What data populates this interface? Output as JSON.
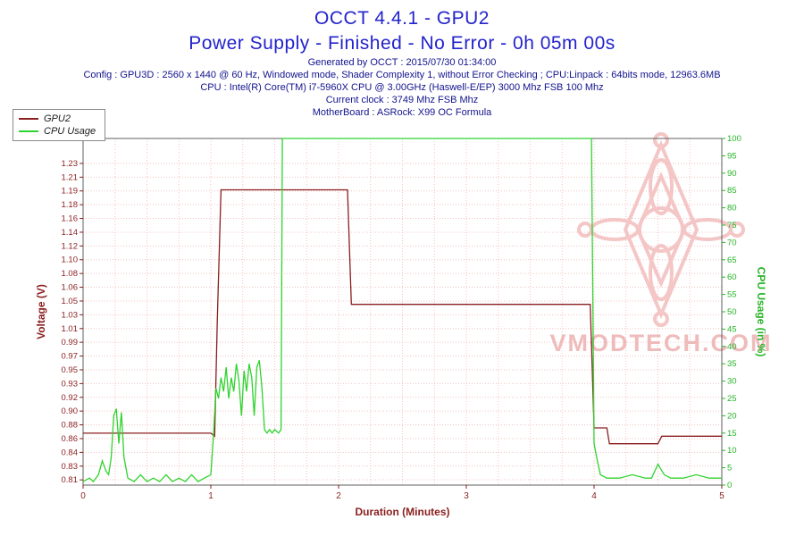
{
  "header": {
    "title_color": "#2323cc",
    "meta_color": "#12128e",
    "meta_lines": [
      "Generated by OCCT : 2015/07/30 01:34:00",
      "Config : GPU3D : 2560 x 1440 @ 60 Hz, Windowed mode, Shader Complexity 1, without Error Checking ; CPU:Linpack : 64bits mode, 12963.6MB",
      "CPU : Intel(R) Core(TM) i7-5960X CPU @ 3.00GHz (Haswell-E/EP) 3000 Mhz FSB 100 Mhz",
      "Current clock : 3749 Mhz FSB  Mhz",
      "MotherBoard : ASRock: X99 OC Formula"
    ]
  },
  "watermark": {
    "text": "VMODTECH.COM",
    "color": "#eeb4b4",
    "shape_color": "#f3c0c0"
  },
  "chart_data": {
    "type": "line",
    "title": "OCCT 4.4.1 - GPU2",
    "subtitle": "Power Supply - Finished - No Error - 0h 05m 00s",
    "xlabel": "Duration (Minutes)",
    "xlim": [
      0,
      5
    ],
    "x_ticks": [
      0,
      1,
      2,
      3,
      4,
      5
    ],
    "grid": true,
    "grid_color": "#f5c1c1",
    "legend_position": "top-left",
    "left_axis": {
      "label": "Voltage (V)",
      "color": "#8b1e1e",
      "range_top": 1.23,
      "range_bottom": 0.81,
      "tick_labels": [
        "1.23",
        "1.21",
        "1.19",
        "1.18",
        "1.16",
        "1.14",
        "1.12",
        "1.10",
        "1.08",
        "1.06",
        "1.05",
        "1.03",
        "1.01",
        "0.99",
        "0.97",
        "0.95",
        "0.93",
        "0.92",
        "0.90",
        "0.88",
        "0.86",
        "0.84",
        "0.83",
        "0.81"
      ]
    },
    "right_axis": {
      "label": "CPU Usage (in %)",
      "color": "#28b428",
      "lim": [
        0,
        100
      ],
      "ticks": [
        0,
        5,
        10,
        15,
        20,
        25,
        30,
        35,
        40,
        45,
        50,
        55,
        60,
        65,
        70,
        75,
        80,
        85,
        90,
        95,
        100
      ]
    },
    "series": [
      {
        "name": "GPU2",
        "axis": "left",
        "color": "#8b1e1e",
        "points": [
          [
            0,
            0.872
          ],
          [
            0.3,
            0.872
          ],
          [
            0.6,
            0.872
          ],
          [
            0.9,
            0.872
          ],
          [
            1.0,
            0.872
          ],
          [
            1.03,
            0.868
          ],
          [
            1.05,
            1.02
          ],
          [
            1.08,
            1.195
          ],
          [
            1.4,
            1.195
          ],
          [
            1.8,
            1.195
          ],
          [
            2.07,
            1.195
          ],
          [
            2.1,
            1.043
          ],
          [
            2.5,
            1.043
          ],
          [
            3.0,
            1.043
          ],
          [
            3.5,
            1.043
          ],
          [
            3.97,
            1.043
          ],
          [
            4.0,
            0.879
          ],
          [
            4.1,
            0.879
          ],
          [
            4.12,
            0.858
          ],
          [
            4.3,
            0.858
          ],
          [
            4.5,
            0.858
          ],
          [
            4.53,
            0.868
          ],
          [
            4.8,
            0.868
          ],
          [
            5,
            0.868
          ]
        ]
      },
      {
        "name": "CPU Usage",
        "axis": "right",
        "color": "#2fd32f",
        "points": [
          [
            0,
            1
          ],
          [
            0.05,
            2
          ],
          [
            0.08,
            1
          ],
          [
            0.12,
            3
          ],
          [
            0.15,
            7
          ],
          [
            0.18,
            4
          ],
          [
            0.2,
            3
          ],
          [
            0.22,
            8
          ],
          [
            0.24,
            20
          ],
          [
            0.26,
            22
          ],
          [
            0.28,
            12
          ],
          [
            0.3,
            21
          ],
          [
            0.32,
            8
          ],
          [
            0.35,
            2
          ],
          [
            0.4,
            1
          ],
          [
            0.45,
            3
          ],
          [
            0.5,
            1
          ],
          [
            0.55,
            2
          ],
          [
            0.6,
            1
          ],
          [
            0.65,
            3
          ],
          [
            0.7,
            1
          ],
          [
            0.75,
            2
          ],
          [
            0.8,
            1
          ],
          [
            0.85,
            3
          ],
          [
            0.9,
            1
          ],
          [
            0.95,
            2
          ],
          [
            1.0,
            3
          ],
          [
            1.02,
            14
          ],
          [
            1.04,
            28
          ],
          [
            1.06,
            25
          ],
          [
            1.08,
            31
          ],
          [
            1.1,
            27
          ],
          [
            1.12,
            34
          ],
          [
            1.14,
            25
          ],
          [
            1.16,
            31
          ],
          [
            1.18,
            27
          ],
          [
            1.2,
            35
          ],
          [
            1.22,
            30
          ],
          [
            1.24,
            20
          ],
          [
            1.26,
            33
          ],
          [
            1.28,
            27
          ],
          [
            1.3,
            35
          ],
          [
            1.32,
            31
          ],
          [
            1.34,
            20
          ],
          [
            1.36,
            34
          ],
          [
            1.38,
            36
          ],
          [
            1.4,
            28
          ],
          [
            1.42,
            16
          ],
          [
            1.44,
            15
          ],
          [
            1.46,
            16
          ],
          [
            1.48,
            15
          ],
          [
            1.5,
            16
          ],
          [
            1.53,
            15
          ],
          [
            1.55,
            16
          ],
          [
            1.56,
            100
          ],
          [
            2.0,
            100
          ],
          [
            2.5,
            100
          ],
          [
            3.0,
            100
          ],
          [
            3.5,
            100
          ],
          [
            3.98,
            100
          ],
          [
            4.0,
            12
          ],
          [
            4.02,
            8
          ],
          [
            4.05,
            3
          ],
          [
            4.1,
            2
          ],
          [
            4.2,
            2
          ],
          [
            4.3,
            3
          ],
          [
            4.4,
            2
          ],
          [
            4.45,
            2
          ],
          [
            4.5,
            6
          ],
          [
            4.55,
            3
          ],
          [
            4.6,
            2
          ],
          [
            4.7,
            2
          ],
          [
            4.8,
            3
          ],
          [
            4.9,
            2
          ],
          [
            5,
            2
          ]
        ]
      }
    ]
  }
}
